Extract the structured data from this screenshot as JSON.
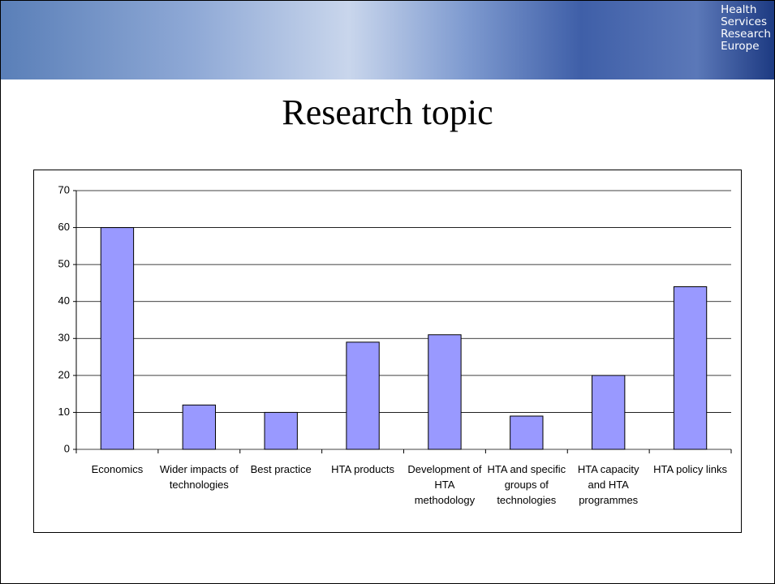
{
  "header": {
    "logo_lines": [
      "Health",
      "Services",
      "Research",
      "Europe"
    ]
  },
  "chart_data": {
    "type": "bar",
    "title": "Research topic",
    "categories": [
      "Economics",
      "Wider impacts of technologies",
      "Best practice",
      "HTA products",
      "Development of HTA methodology",
      "HTA and specific groups of technologies",
      "HTA capacity and HTA programmes",
      "HTA policy links"
    ],
    "values": [
      60,
      12,
      10,
      29,
      31,
      9,
      20,
      44
    ],
    "color": "#9999ff",
    "ylim": [
      0,
      70
    ],
    "yticks": [
      0,
      10,
      20,
      30,
      40,
      50,
      60,
      70
    ],
    "grid": true
  }
}
